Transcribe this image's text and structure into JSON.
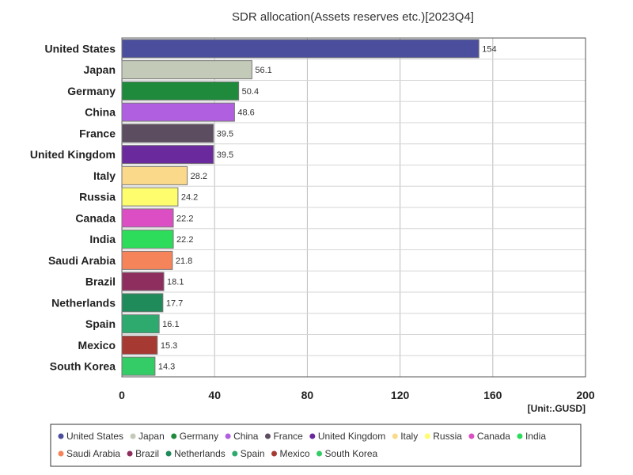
{
  "chart_data": {
    "type": "bar",
    "orientation": "horizontal",
    "title": "SDR allocation(Assets reserves etc.)[2023Q4]",
    "unit_label": "[Unit:.GUSD]",
    "xlim": [
      0,
      200
    ],
    "x_ticks": [
      0,
      40,
      80,
      120,
      160,
      200
    ],
    "grid": true,
    "legend_position": "bottom",
    "categories": [
      "United States",
      "Japan",
      "Germany",
      "China",
      "France",
      "United Kingdom",
      "Italy",
      "Russia",
      "Canada",
      "India",
      "Saudi Arabia",
      "Brazil",
      "Netherlands",
      "Spain",
      "Mexico",
      "South Korea"
    ],
    "values": [
      154,
      56.1,
      50.4,
      48.6,
      39.5,
      39.5,
      28.2,
      24.2,
      22.2,
      22.2,
      21.8,
      18.1,
      17.7,
      16.1,
      15.3,
      14.3
    ],
    "value_labels": [
      "154",
      "56.1",
      "50.4",
      "48.6",
      "39.5",
      "39.5",
      "28.2",
      "24.2",
      "22.2",
      "22.2",
      "21.8",
      "18.1",
      "17.7",
      "16.1",
      "15.3",
      "14.3"
    ],
    "colors": [
      "#4a4e9c",
      "#c4cab8",
      "#1f8a3c",
      "#b05fe0",
      "#5c4d60",
      "#6a2a9e",
      "#fbd98a",
      "#fdfd6e",
      "#dc4fc4",
      "#2ddc5a",
      "#f5845a",
      "#8e2e5e",
      "#1f8a5a",
      "#2eaa6e",
      "#a63a32",
      "#33cc66"
    ]
  }
}
